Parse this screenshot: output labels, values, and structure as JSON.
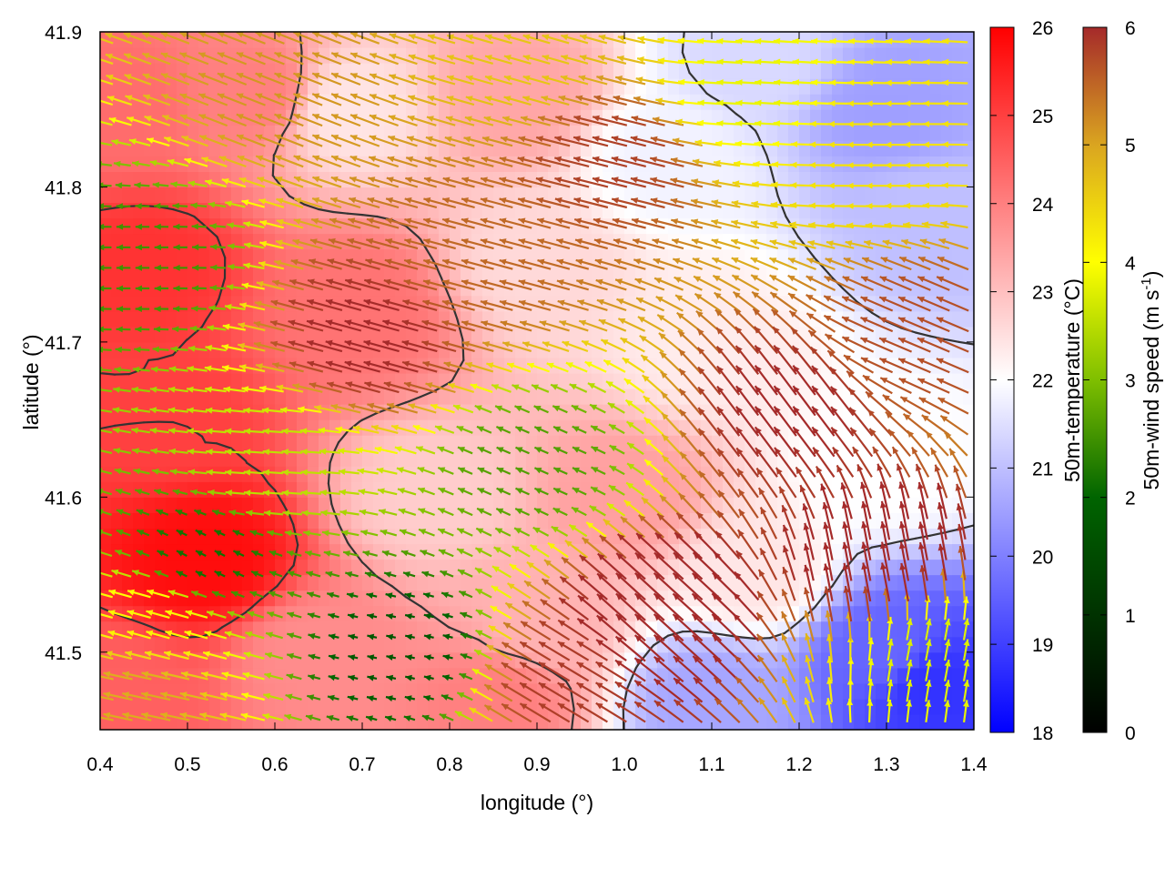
{
  "chart_data": {
    "type": "heatmap",
    "title": "",
    "xlabel": "longitude (°)",
    "ylabel": "latitude (°)",
    "xlim": [
      0.4,
      1.4
    ],
    "ylim": [
      41.45,
      41.9
    ],
    "xticks": [
      "0.4",
      "0.5",
      "0.6",
      "0.7",
      "0.8",
      "0.9",
      "1.0",
      "1.1",
      "1.2",
      "1.3",
      "1.4"
    ],
    "yticks": [
      "41.5",
      "41.6",
      "41.7",
      "41.8",
      "41.9"
    ],
    "temperature_colorbar": {
      "label": "50m-temperature (°C)",
      "range": [
        18,
        26
      ],
      "ticks": [
        "18",
        "19",
        "20",
        "21",
        "22",
        "23",
        "24",
        "25",
        "26"
      ],
      "colors": [
        "#0000ff",
        "#ffffff",
        "#ff0000"
      ]
    },
    "wind_colorbar": {
      "label_main": "50m-wind speed (m s",
      "label_sup": "-1",
      "label_end": ")",
      "range": [
        0,
        6
      ],
      "ticks": [
        "0",
        "1",
        "2",
        "3",
        "4",
        "5",
        "6"
      ],
      "colors": [
        "#000000",
        "#006400",
        "#7fbf00",
        "#ffff00",
        "#daa520",
        "#a52a2a"
      ]
    },
    "temperature_field": {
      "description_units": "°C",
      "anchors": [
        {
          "lon": 0.45,
          "lat": 41.75,
          "t": 25.2
        },
        {
          "lon": 0.52,
          "lat": 41.56,
          "t": 25.8
        },
        {
          "lon": 0.47,
          "lat": 41.65,
          "t": 25.0
        },
        {
          "lon": 0.42,
          "lat": 41.85,
          "t": 24.3
        },
        {
          "lon": 0.58,
          "lat": 41.86,
          "t": 24.0
        },
        {
          "lon": 0.7,
          "lat": 41.72,
          "t": 24.2
        },
        {
          "lon": 0.78,
          "lat": 41.6,
          "t": 22.8
        },
        {
          "lon": 0.9,
          "lat": 41.75,
          "t": 22.6
        },
        {
          "lon": 0.68,
          "lat": 41.85,
          "t": 22.4
        },
        {
          "lon": 0.88,
          "lat": 41.86,
          "t": 23.4
        },
        {
          "lon": 1.05,
          "lat": 41.82,
          "t": 21.8
        },
        {
          "lon": 1.15,
          "lat": 41.88,
          "t": 21.4
        },
        {
          "lon": 1.3,
          "lat": 41.85,
          "t": 20.5
        },
        {
          "lon": 1.35,
          "lat": 41.78,
          "t": 21.0
        },
        {
          "lon": 1.1,
          "lat": 41.7,
          "t": 22.3
        },
        {
          "lon": 1.0,
          "lat": 41.6,
          "t": 23.5
        },
        {
          "lon": 0.9,
          "lat": 41.52,
          "t": 23.2
        },
        {
          "lon": 0.85,
          "lat": 41.47,
          "t": 24.0
        },
        {
          "lon": 1.15,
          "lat": 41.55,
          "t": 22.4
        },
        {
          "lon": 1.3,
          "lat": 41.62,
          "t": 22.0
        },
        {
          "lon": 1.3,
          "lat": 41.5,
          "t": 19.6
        },
        {
          "lon": 1.35,
          "lat": 41.48,
          "t": 18.8
        },
        {
          "lon": 1.1,
          "lat": 41.47,
          "t": 20.6
        },
        {
          "lon": 0.65,
          "lat": 41.5,
          "t": 23.8
        },
        {
          "lon": 0.42,
          "lat": 41.47,
          "t": 24.5
        }
      ]
    },
    "wind_field": {
      "description_units": "m s-1",
      "dominant_direction": "westward",
      "anchors": [
        {
          "lon": 0.45,
          "lat": 41.75,
          "u": -1.8,
          "v": 0.0
        },
        {
          "lon": 0.52,
          "lat": 41.56,
          "u": -1.2,
          "v": 0.6
        },
        {
          "lon": 0.47,
          "lat": 41.52,
          "u": -3.6,
          "v": 1.0
        },
        {
          "lon": 0.6,
          "lat": 41.62,
          "u": -3.0,
          "v": 0.2
        },
        {
          "lon": 0.62,
          "lat": 41.86,
          "u": -4.6,
          "v": 1.8
        },
        {
          "lon": 0.72,
          "lat": 41.7,
          "u": -5.8,
          "v": 1.6
        },
        {
          "lon": 0.85,
          "lat": 41.75,
          "u": -5.2,
          "v": 1.4
        },
        {
          "lon": 0.9,
          "lat": 41.88,
          "u": -4.2,
          "v": 1.2
        },
        {
          "lon": 1.0,
          "lat": 41.82,
          "u": -5.6,
          "v": 1.4
        },
        {
          "lon": 1.15,
          "lat": 41.86,
          "u": -3.4,
          "v": 0.2
        },
        {
          "lon": 1.3,
          "lat": 41.82,
          "u": -4.0,
          "v": 0.0
        },
        {
          "lon": 0.9,
          "lat": 41.62,
          "u": -1.8,
          "v": 0.8
        },
        {
          "lon": 1.05,
          "lat": 41.52,
          "u": -4.8,
          "v": 4.4
        },
        {
          "lon": 1.2,
          "lat": 41.65,
          "u": -3.6,
          "v": 4.8
        },
        {
          "lon": 1.3,
          "lat": 41.55,
          "u": -1.2,
          "v": 6.4
        },
        {
          "lon": 1.35,
          "lat": 41.5,
          "u": 0.6,
          "v": 3.2
        },
        {
          "lon": 1.35,
          "lat": 41.7,
          "u": -5.2,
          "v": 2.2
        },
        {
          "lon": 0.95,
          "lat": 41.48,
          "u": -5.0,
          "v": 3.0
        },
        {
          "lon": 0.75,
          "lat": 41.5,
          "u": -1.0,
          "v": 0.2
        },
        {
          "lon": 0.45,
          "lat": 41.47,
          "u": -4.6,
          "v": 1.0
        }
      ]
    }
  }
}
